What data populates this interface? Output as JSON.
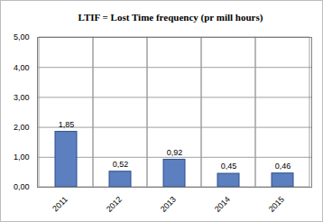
{
  "chart_data": {
    "type": "bar",
    "title": "LTIF = Lost Time frequency (pr mill hours)",
    "categories": [
      "2011",
      "2012",
      "2013",
      "2014",
      "2015"
    ],
    "values": [
      1.85,
      0.52,
      0.92,
      0.45,
      0.46
    ],
    "value_labels": [
      "1,85",
      "0,52",
      "0,92",
      "0,45",
      "0,46"
    ],
    "data_labels": true,
    "color": "#5b7fbf",
    "ylim": [
      0,
      5
    ],
    "yticks": [
      {
        "value": 0,
        "label": "0,00"
      },
      {
        "value": 1,
        "label": "1,00"
      },
      {
        "value": 2,
        "label": "2,00"
      },
      {
        "value": 3,
        "label": "3,00"
      },
      {
        "value": 4,
        "label": "4,00"
      },
      {
        "value": 5,
        "label": "5,00"
      }
    ],
    "grid": true
  }
}
